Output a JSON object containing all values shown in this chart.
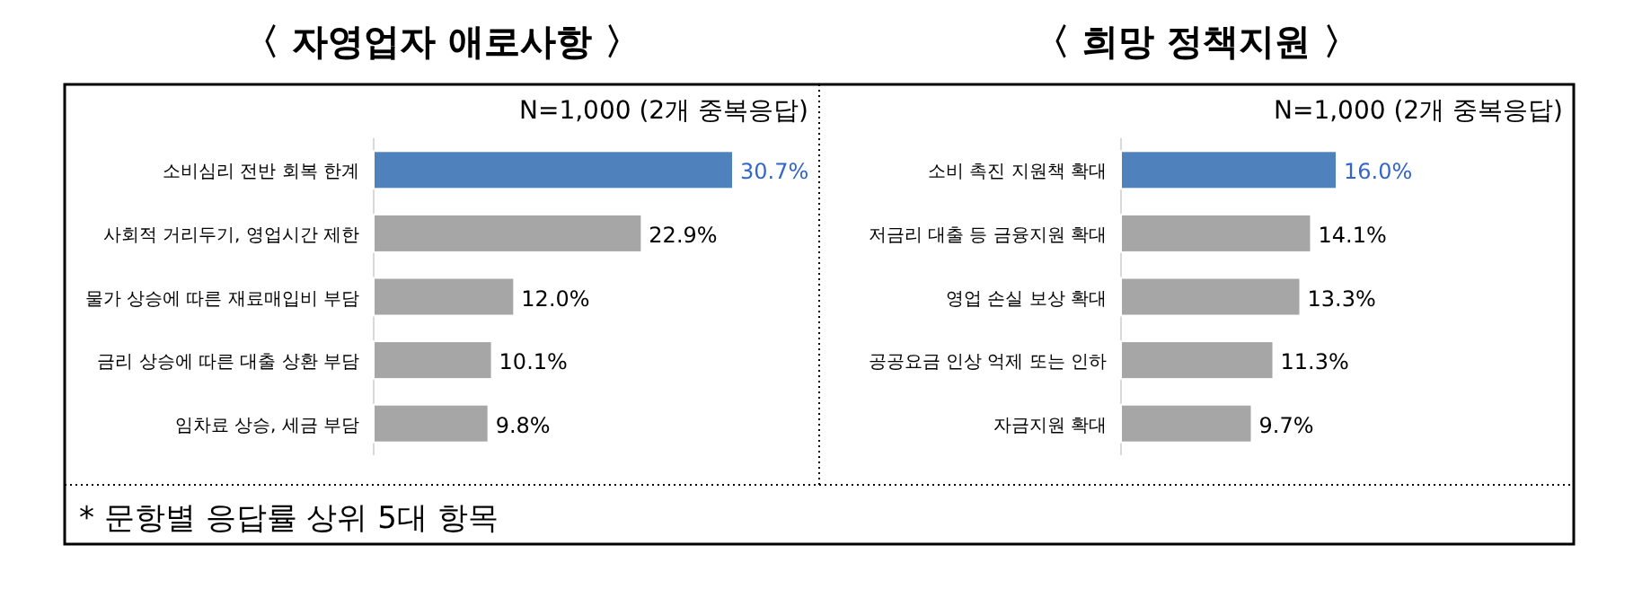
{
  "chart_data": [
    {
      "type": "bar",
      "orientation": "horizontal",
      "title": "〈 자영업자 애로사항 〉",
      "subtitle": "N=1,000 (2개 중복응답)",
      "categories": [
        "소비심리 전반 회복 한계",
        "사회적 거리두기, 영업시간 제한",
        "물가 상승에 따른 재료매입비 부담",
        "금리 상승에 따른 대출 상환 부담",
        "임차료 상승, 세금 부담"
      ],
      "values": [
        30.7,
        22.9,
        12.0,
        10.1,
        9.8
      ],
      "colors": [
        "#4f81bd",
        "#a6a6a6",
        "#a6a6a6",
        "#a6a6a6",
        "#a6a6a6"
      ],
      "value_labels": [
        "30.7%",
        "22.9%",
        "12.0%",
        "10.1%",
        "9.8%"
      ],
      "annotations": [
        "* 문항별 응답률 상위 5대 항목"
      ]
    },
    {
      "type": "bar",
      "orientation": "horizontal",
      "title": "〈 희망 정책지원 〉",
      "subtitle": "N=1,000 (2개 중복응답)",
      "categories": [
        "소비 촉진 지원책 확대",
        "저금리 대출 등 금융지원 확대",
        "영업 손실 보상 확대",
        "공공요금 인상 억제 또는 인하",
        "자금지원 확대"
      ],
      "values": [
        16.0,
        14.1,
        13.3,
        11.3,
        9.7
      ],
      "colors": [
        "#4f81bd",
        "#a6a6a6",
        "#a6a6a6",
        "#a6a6a6",
        "#a6a6a6"
      ],
      "value_labels": [
        "16.0%",
        "14.1%",
        "13.3%",
        "11.3%",
        "9.7%"
      ]
    }
  ]
}
